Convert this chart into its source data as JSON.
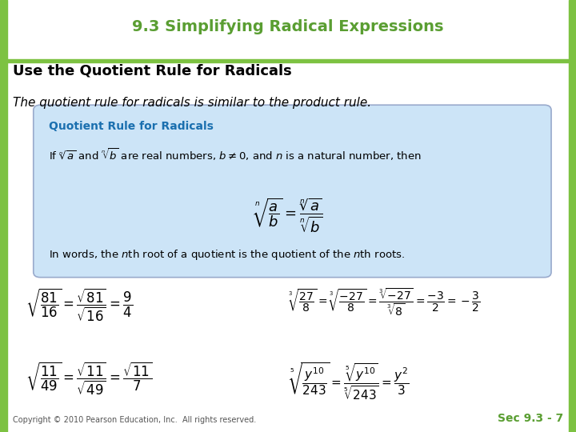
{
  "title": "9.3 Simplifying Radical Expressions",
  "subtitle": "Use the Quotient Rule for Radicals",
  "title_color": "#5a9e32",
  "subtitle_color": "#000000",
  "border_color": "#7dc242",
  "box_bg_color": "#cce4f7",
  "box_border_color": "#aaaacc",
  "box_title": "Quotient Rule for Radicals",
  "box_title_color": "#1a6faf",
  "footer_left": "Copyright © 2010 Pearson Education, Inc.  All rights reserved.",
  "footer_right": "Sec 9.3 - 7",
  "footer_color": "#5a9e32",
  "bg_color": "#ffffff",
  "slide_border": "#7dc242"
}
